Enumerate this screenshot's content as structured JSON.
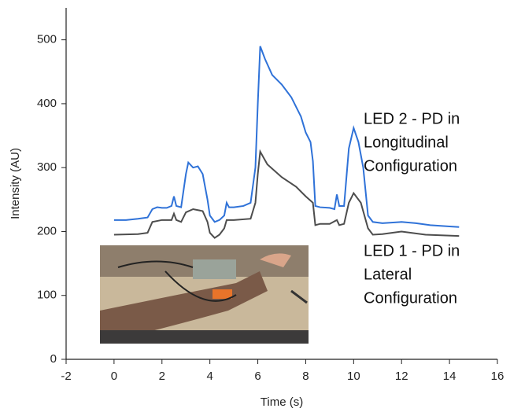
{
  "chart_data": {
    "type": "line",
    "xlabel": "Time (s)",
    "ylabel": "Intensity (AU)",
    "xlim": [
      -2,
      16
    ],
    "xticks": [
      -2,
      0,
      2,
      4,
      6,
      8,
      10,
      12,
      14,
      16
    ],
    "ylim": [
      0,
      550
    ],
    "yticks": [
      0,
      100,
      200,
      300,
      400,
      500
    ],
    "series": [
      {
        "color": "#2f72d8",
        "x": [
          0,
          0.5,
          1.0,
          1.4,
          1.6,
          1.8,
          2.0,
          2.2,
          2.4,
          2.5,
          2.6,
          2.8,
          3.0,
          3.1,
          3.3,
          3.5,
          3.7,
          3.9,
          4.0,
          4.2,
          4.4,
          4.6,
          4.7,
          4.8,
          5.0,
          5.4,
          5.7,
          5.9,
          6.0,
          6.1,
          6.3,
          6.6,
          7.0,
          7.4,
          7.8,
          8.0,
          8.2,
          8.3,
          8.4,
          8.6,
          9.0,
          9.2,
          9.3,
          9.4,
          9.6,
          9.8,
          10.0,
          10.2,
          10.4,
          10.6,
          10.8,
          11.2,
          12.0,
          12.6,
          13.2,
          14.0,
          14.4
        ],
        "values": [
          218,
          218,
          220,
          222,
          235,
          238,
          237,
          237,
          240,
          255,
          240,
          238,
          290,
          308,
          300,
          302,
          290,
          250,
          225,
          215,
          218,
          225,
          245,
          238,
          238,
          240,
          245,
          300,
          400,
          490,
          470,
          445,
          430,
          410,
          380,
          355,
          340,
          310,
          240,
          238,
          237,
          235,
          258,
          240,
          240,
          330,
          362,
          340,
          300,
          225,
          215,
          213,
          215,
          213,
          210,
          208,
          207
        ]
      },
      {
        "color": "#4d4d4d",
        "x": [
          0,
          1.0,
          1.4,
          1.6,
          2.0,
          2.4,
          2.5,
          2.6,
          2.8,
          3.0,
          3.3,
          3.7,
          3.9,
          4.0,
          4.2,
          4.4,
          4.6,
          4.7,
          5.0,
          5.7,
          5.9,
          6.0,
          6.1,
          6.4,
          7.0,
          7.6,
          8.0,
          8.3,
          8.4,
          8.6,
          9.0,
          9.3,
          9.4,
          9.6,
          9.8,
          10.0,
          10.3,
          10.6,
          10.8,
          11.2,
          12.0,
          13.0,
          14.4
        ],
        "values": [
          195,
          196,
          198,
          215,
          218,
          218,
          228,
          218,
          215,
          230,
          235,
          232,
          215,
          198,
          190,
          195,
          205,
          218,
          218,
          220,
          245,
          290,
          325,
          305,
          285,
          270,
          255,
          245,
          210,
          212,
          212,
          218,
          210,
          212,
          245,
          260,
          245,
          205,
          195,
          196,
          200,
          195,
          193
        ]
      }
    ],
    "annotations": [
      [
        "LED 2 - PD in",
        "Longitudinal",
        "Configuration"
      ],
      [
        "LED 1 - PD in",
        "Lateral",
        "Configuration"
      ]
    ]
  }
}
